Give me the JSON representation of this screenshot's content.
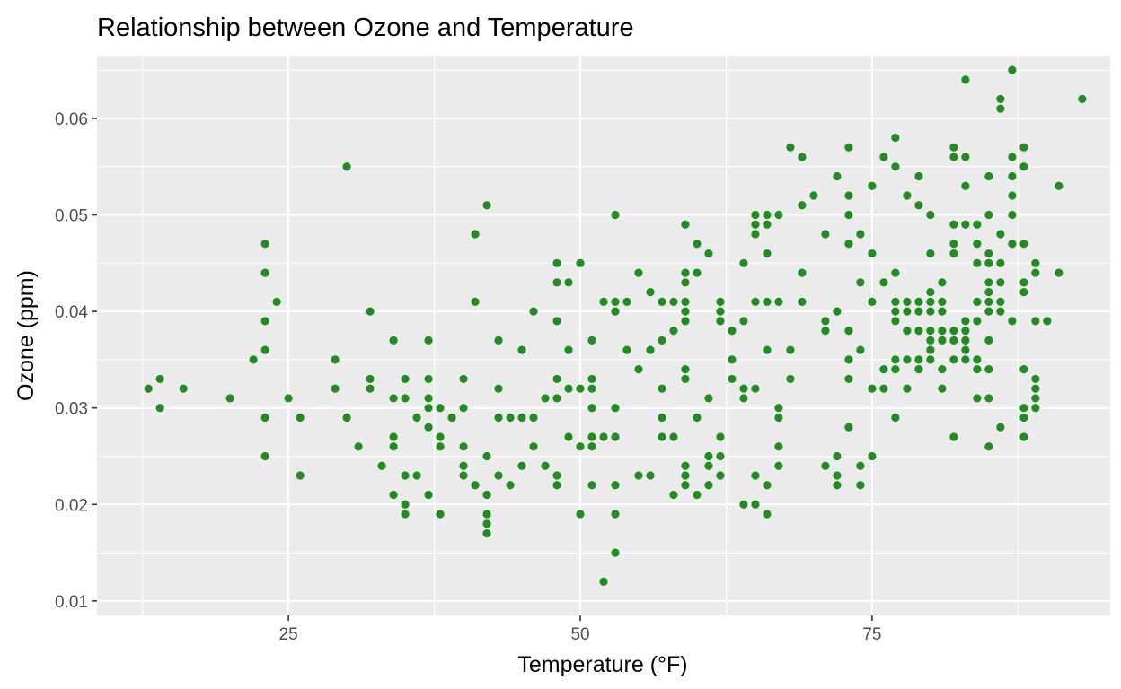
{
  "chart_data": {
    "type": "scatter",
    "title": "Relationship between Ozone and Temperature",
    "xlabel": "Temperature (°F)",
    "ylabel": "Ozone (ppm)",
    "xlim": [
      8.6,
      95.4
    ],
    "ylim": [
      0.0085,
      0.0665
    ],
    "x_ticks": [
      25,
      50,
      75
    ],
    "x_tick_labels": [
      "25",
      "50",
      "75"
    ],
    "y_ticks": [
      0.01,
      0.02,
      0.03,
      0.04,
      0.05,
      0.06
    ],
    "y_tick_labels": [
      "0.01",
      "0.02",
      "0.03",
      "0.04",
      "0.05",
      "0.06"
    ],
    "grid": true,
    "legend": "none",
    "point_color": "#228B22",
    "panel_background": "#EBEBEB",
    "grid_color": "#FFFFFF",
    "points": [
      [
        13,
        0.032
      ],
      [
        14,
        0.033
      ],
      [
        14,
        0.03
      ],
      [
        16,
        0.032
      ],
      [
        20,
        0.031
      ],
      [
        22,
        0.035
      ],
      [
        23,
        0.047
      ],
      [
        23,
        0.044
      ],
      [
        23,
        0.039
      ],
      [
        23,
        0.036
      ],
      [
        23,
        0.029
      ],
      [
        23,
        0.025
      ],
      [
        24,
        0.041
      ],
      [
        25,
        0.031
      ],
      [
        26,
        0.029
      ],
      [
        26,
        0.023
      ],
      [
        29,
        0.035
      ],
      [
        29,
        0.032
      ],
      [
        30,
        0.055
      ],
      [
        30,
        0.029
      ],
      [
        31,
        0.026
      ],
      [
        32,
        0.04
      ],
      [
        32,
        0.033
      ],
      [
        32,
        0.032
      ],
      [
        33,
        0.024
      ],
      [
        34,
        0.037
      ],
      [
        34,
        0.031
      ],
      [
        34,
        0.027
      ],
      [
        34,
        0.026
      ],
      [
        34,
        0.021
      ],
      [
        35,
        0.033
      ],
      [
        35,
        0.031
      ],
      [
        35,
        0.023
      ],
      [
        35,
        0.02
      ],
      [
        35,
        0.019
      ],
      [
        36,
        0.029
      ],
      [
        36,
        0.023
      ],
      [
        37,
        0.037
      ],
      [
        37,
        0.033
      ],
      [
        37,
        0.031
      ],
      [
        37,
        0.03
      ],
      [
        37,
        0.028
      ],
      [
        37,
        0.021
      ],
      [
        38,
        0.03
      ],
      [
        38,
        0.027
      ],
      [
        38,
        0.026
      ],
      [
        38,
        0.019
      ],
      [
        39,
        0.029
      ],
      [
        40,
        0.033
      ],
      [
        40,
        0.03
      ],
      [
        40,
        0.026
      ],
      [
        40,
        0.024
      ],
      [
        40,
        0.023
      ],
      [
        41,
        0.048
      ],
      [
        41,
        0.041
      ],
      [
        41,
        0.022
      ],
      [
        42,
        0.051
      ],
      [
        42,
        0.025
      ],
      [
        42,
        0.021
      ],
      [
        42,
        0.019
      ],
      [
        42,
        0.018
      ],
      [
        42,
        0.017
      ],
      [
        43,
        0.037
      ],
      [
        43,
        0.032
      ],
      [
        43,
        0.029
      ],
      [
        43,
        0.023
      ],
      [
        44,
        0.029
      ],
      [
        44,
        0.022
      ],
      [
        45,
        0.036
      ],
      [
        45,
        0.029
      ],
      [
        45,
        0.024
      ],
      [
        46,
        0.04
      ],
      [
        46,
        0.029
      ],
      [
        46,
        0.026
      ],
      [
        47,
        0.031
      ],
      [
        47,
        0.024
      ],
      [
        48,
        0.045
      ],
      [
        48,
        0.043
      ],
      [
        48,
        0.039
      ],
      [
        48,
        0.033
      ],
      [
        48,
        0.031
      ],
      [
        48,
        0.023
      ],
      [
        48,
        0.022
      ],
      [
        49,
        0.043
      ],
      [
        49,
        0.036
      ],
      [
        49,
        0.032
      ],
      [
        49,
        0.027
      ],
      [
        50,
        0.045
      ],
      [
        50,
        0.032
      ],
      [
        50,
        0.026
      ],
      [
        50,
        0.019
      ],
      [
        51,
        0.037
      ],
      [
        51,
        0.033
      ],
      [
        51,
        0.032
      ],
      [
        51,
        0.03
      ],
      [
        51,
        0.027
      ],
      [
        51,
        0.026
      ],
      [
        51,
        0.022
      ],
      [
        52,
        0.041
      ],
      [
        52,
        0.027
      ],
      [
        52,
        0.012
      ],
      [
        53,
        0.05
      ],
      [
        53,
        0.041
      ],
      [
        53,
        0.04
      ],
      [
        53,
        0.03
      ],
      [
        53,
        0.027
      ],
      [
        53,
        0.022
      ],
      [
        53,
        0.019
      ],
      [
        53,
        0.015
      ],
      [
        54,
        0.041
      ],
      [
        54,
        0.036
      ],
      [
        55,
        0.044
      ],
      [
        55,
        0.034
      ],
      [
        55,
        0.023
      ],
      [
        56,
        0.042
      ],
      [
        56,
        0.036
      ],
      [
        56,
        0.023
      ],
      [
        57,
        0.041
      ],
      [
        57,
        0.037
      ],
      [
        57,
        0.032
      ],
      [
        57,
        0.029
      ],
      [
        57,
        0.027
      ],
      [
        58,
        0.041
      ],
      [
        58,
        0.038
      ],
      [
        58,
        0.027
      ],
      [
        58,
        0.021
      ],
      [
        59,
        0.049
      ],
      [
        59,
        0.044
      ],
      [
        59,
        0.043
      ],
      [
        59,
        0.041
      ],
      [
        59,
        0.04
      ],
      [
        59,
        0.039
      ],
      [
        59,
        0.034
      ],
      [
        59,
        0.033
      ],
      [
        59,
        0.024
      ],
      [
        59,
        0.023
      ],
      [
        59,
        0.022
      ],
      [
        60,
        0.047
      ],
      [
        60,
        0.044
      ],
      [
        60,
        0.029
      ],
      [
        60,
        0.021
      ],
      [
        61,
        0.046
      ],
      [
        61,
        0.031
      ],
      [
        61,
        0.025
      ],
      [
        61,
        0.024
      ],
      [
        61,
        0.022
      ],
      [
        62,
        0.041
      ],
      [
        62,
        0.04
      ],
      [
        62,
        0.039
      ],
      [
        62,
        0.027
      ],
      [
        62,
        0.025
      ],
      [
        62,
        0.023
      ],
      [
        63,
        0.038
      ],
      [
        63,
        0.035
      ],
      [
        63,
        0.033
      ],
      [
        64,
        0.045
      ],
      [
        64,
        0.039
      ],
      [
        64,
        0.032
      ],
      [
        64,
        0.031
      ],
      [
        64,
        0.02
      ],
      [
        65,
        0.05
      ],
      [
        65,
        0.049
      ],
      [
        65,
        0.048
      ],
      [
        65,
        0.041
      ],
      [
        65,
        0.032
      ],
      [
        65,
        0.023
      ],
      [
        65,
        0.02
      ],
      [
        66,
        0.05
      ],
      [
        66,
        0.049
      ],
      [
        66,
        0.046
      ],
      [
        66,
        0.041
      ],
      [
        66,
        0.036
      ],
      [
        66,
        0.022
      ],
      [
        66,
        0.019
      ],
      [
        67,
        0.05
      ],
      [
        67,
        0.041
      ],
      [
        67,
        0.03
      ],
      [
        67,
        0.029
      ],
      [
        67,
        0.026
      ],
      [
        67,
        0.024
      ],
      [
        68,
        0.057
      ],
      [
        68,
        0.036
      ],
      [
        68,
        0.033
      ],
      [
        69,
        0.056
      ],
      [
        69,
        0.051
      ],
      [
        69,
        0.044
      ],
      [
        69,
        0.041
      ],
      [
        70,
        0.052
      ],
      [
        71,
        0.048
      ],
      [
        71,
        0.039
      ],
      [
        71,
        0.038
      ],
      [
        71,
        0.024
      ],
      [
        72,
        0.054
      ],
      [
        72,
        0.04
      ],
      [
        72,
        0.025
      ],
      [
        72,
        0.023
      ],
      [
        72,
        0.022
      ],
      [
        73,
        0.057
      ],
      [
        73,
        0.052
      ],
      [
        73,
        0.05
      ],
      [
        73,
        0.047
      ],
      [
        73,
        0.038
      ],
      [
        73,
        0.035
      ],
      [
        73,
        0.033
      ],
      [
        73,
        0.028
      ],
      [
        74,
        0.048
      ],
      [
        74,
        0.043
      ],
      [
        74,
        0.036
      ],
      [
        74,
        0.024
      ],
      [
        74,
        0.022
      ],
      [
        75,
        0.053
      ],
      [
        75,
        0.046
      ],
      [
        75,
        0.041
      ],
      [
        75,
        0.032
      ],
      [
        75,
        0.025
      ],
      [
        76,
        0.056
      ],
      [
        76,
        0.043
      ],
      [
        76,
        0.034
      ],
      [
        76,
        0.032
      ],
      [
        77,
        0.058
      ],
      [
        77,
        0.055
      ],
      [
        77,
        0.044
      ],
      [
        77,
        0.041
      ],
      [
        77,
        0.04
      ],
      [
        77,
        0.039
      ],
      [
        77,
        0.035
      ],
      [
        77,
        0.034
      ],
      [
        77,
        0.029
      ],
      [
        78,
        0.052
      ],
      [
        78,
        0.041
      ],
      [
        78,
        0.04
      ],
      [
        78,
        0.038
      ],
      [
        78,
        0.035
      ],
      [
        78,
        0.032
      ],
      [
        79,
        0.054
      ],
      [
        79,
        0.051
      ],
      [
        79,
        0.041
      ],
      [
        79,
        0.04
      ],
      [
        79,
        0.038
      ],
      [
        79,
        0.035
      ],
      [
        79,
        0.034
      ],
      [
        80,
        0.05
      ],
      [
        80,
        0.046
      ],
      [
        80,
        0.042
      ],
      [
        80,
        0.041
      ],
      [
        80,
        0.04
      ],
      [
        80,
        0.038
      ],
      [
        80,
        0.037
      ],
      [
        80,
        0.036
      ],
      [
        80,
        0.035
      ],
      [
        81,
        0.043
      ],
      [
        81,
        0.041
      ],
      [
        81,
        0.04
      ],
      [
        81,
        0.038
      ],
      [
        81,
        0.037
      ],
      [
        81,
        0.034
      ],
      [
        81,
        0.032
      ],
      [
        82,
        0.057
      ],
      [
        82,
        0.056
      ],
      [
        82,
        0.049
      ],
      [
        82,
        0.047
      ],
      [
        82,
        0.046
      ],
      [
        82,
        0.038
      ],
      [
        82,
        0.037
      ],
      [
        82,
        0.035
      ],
      [
        82,
        0.027
      ],
      [
        83,
        0.064
      ],
      [
        83,
        0.056
      ],
      [
        83,
        0.053
      ],
      [
        83,
        0.049
      ],
      [
        83,
        0.039
      ],
      [
        83,
        0.038
      ],
      [
        83,
        0.037
      ],
      [
        83,
        0.036
      ],
      [
        83,
        0.035
      ],
      [
        84,
        0.049
      ],
      [
        84,
        0.047
      ],
      [
        84,
        0.045
      ],
      [
        84,
        0.041
      ],
      [
        84,
        0.039
      ],
      [
        84,
        0.035
      ],
      [
        84,
        0.034
      ],
      [
        84,
        0.031
      ],
      [
        85,
        0.054
      ],
      [
        85,
        0.05
      ],
      [
        85,
        0.046
      ],
      [
        85,
        0.045
      ],
      [
        85,
        0.043
      ],
      [
        85,
        0.042
      ],
      [
        85,
        0.041
      ],
      [
        85,
        0.04
      ],
      [
        85,
        0.037
      ],
      [
        85,
        0.034
      ],
      [
        85,
        0.031
      ],
      [
        85,
        0.026
      ],
      [
        86,
        0.062
      ],
      [
        86,
        0.061
      ],
      [
        86,
        0.048
      ],
      [
        86,
        0.045
      ],
      [
        86,
        0.043
      ],
      [
        86,
        0.041
      ],
      [
        86,
        0.04
      ],
      [
        86,
        0.028
      ],
      [
        87,
        0.065
      ],
      [
        87,
        0.056
      ],
      [
        87,
        0.054
      ],
      [
        87,
        0.052
      ],
      [
        87,
        0.05
      ],
      [
        87,
        0.047
      ],
      [
        87,
        0.039
      ],
      [
        88,
        0.057
      ],
      [
        88,
        0.055
      ],
      [
        88,
        0.047
      ],
      [
        88,
        0.043
      ],
      [
        88,
        0.042
      ],
      [
        88,
        0.034
      ],
      [
        88,
        0.03
      ],
      [
        88,
        0.029
      ],
      [
        88,
        0.027
      ],
      [
        89,
        0.045
      ],
      [
        89,
        0.044
      ],
      [
        89,
        0.039
      ],
      [
        89,
        0.033
      ],
      [
        89,
        0.032
      ],
      [
        89,
        0.031
      ],
      [
        89,
        0.03
      ],
      [
        90,
        0.039
      ],
      [
        91,
        0.053
      ],
      [
        91,
        0.044
      ],
      [
        93,
        0.062
      ]
    ]
  }
}
